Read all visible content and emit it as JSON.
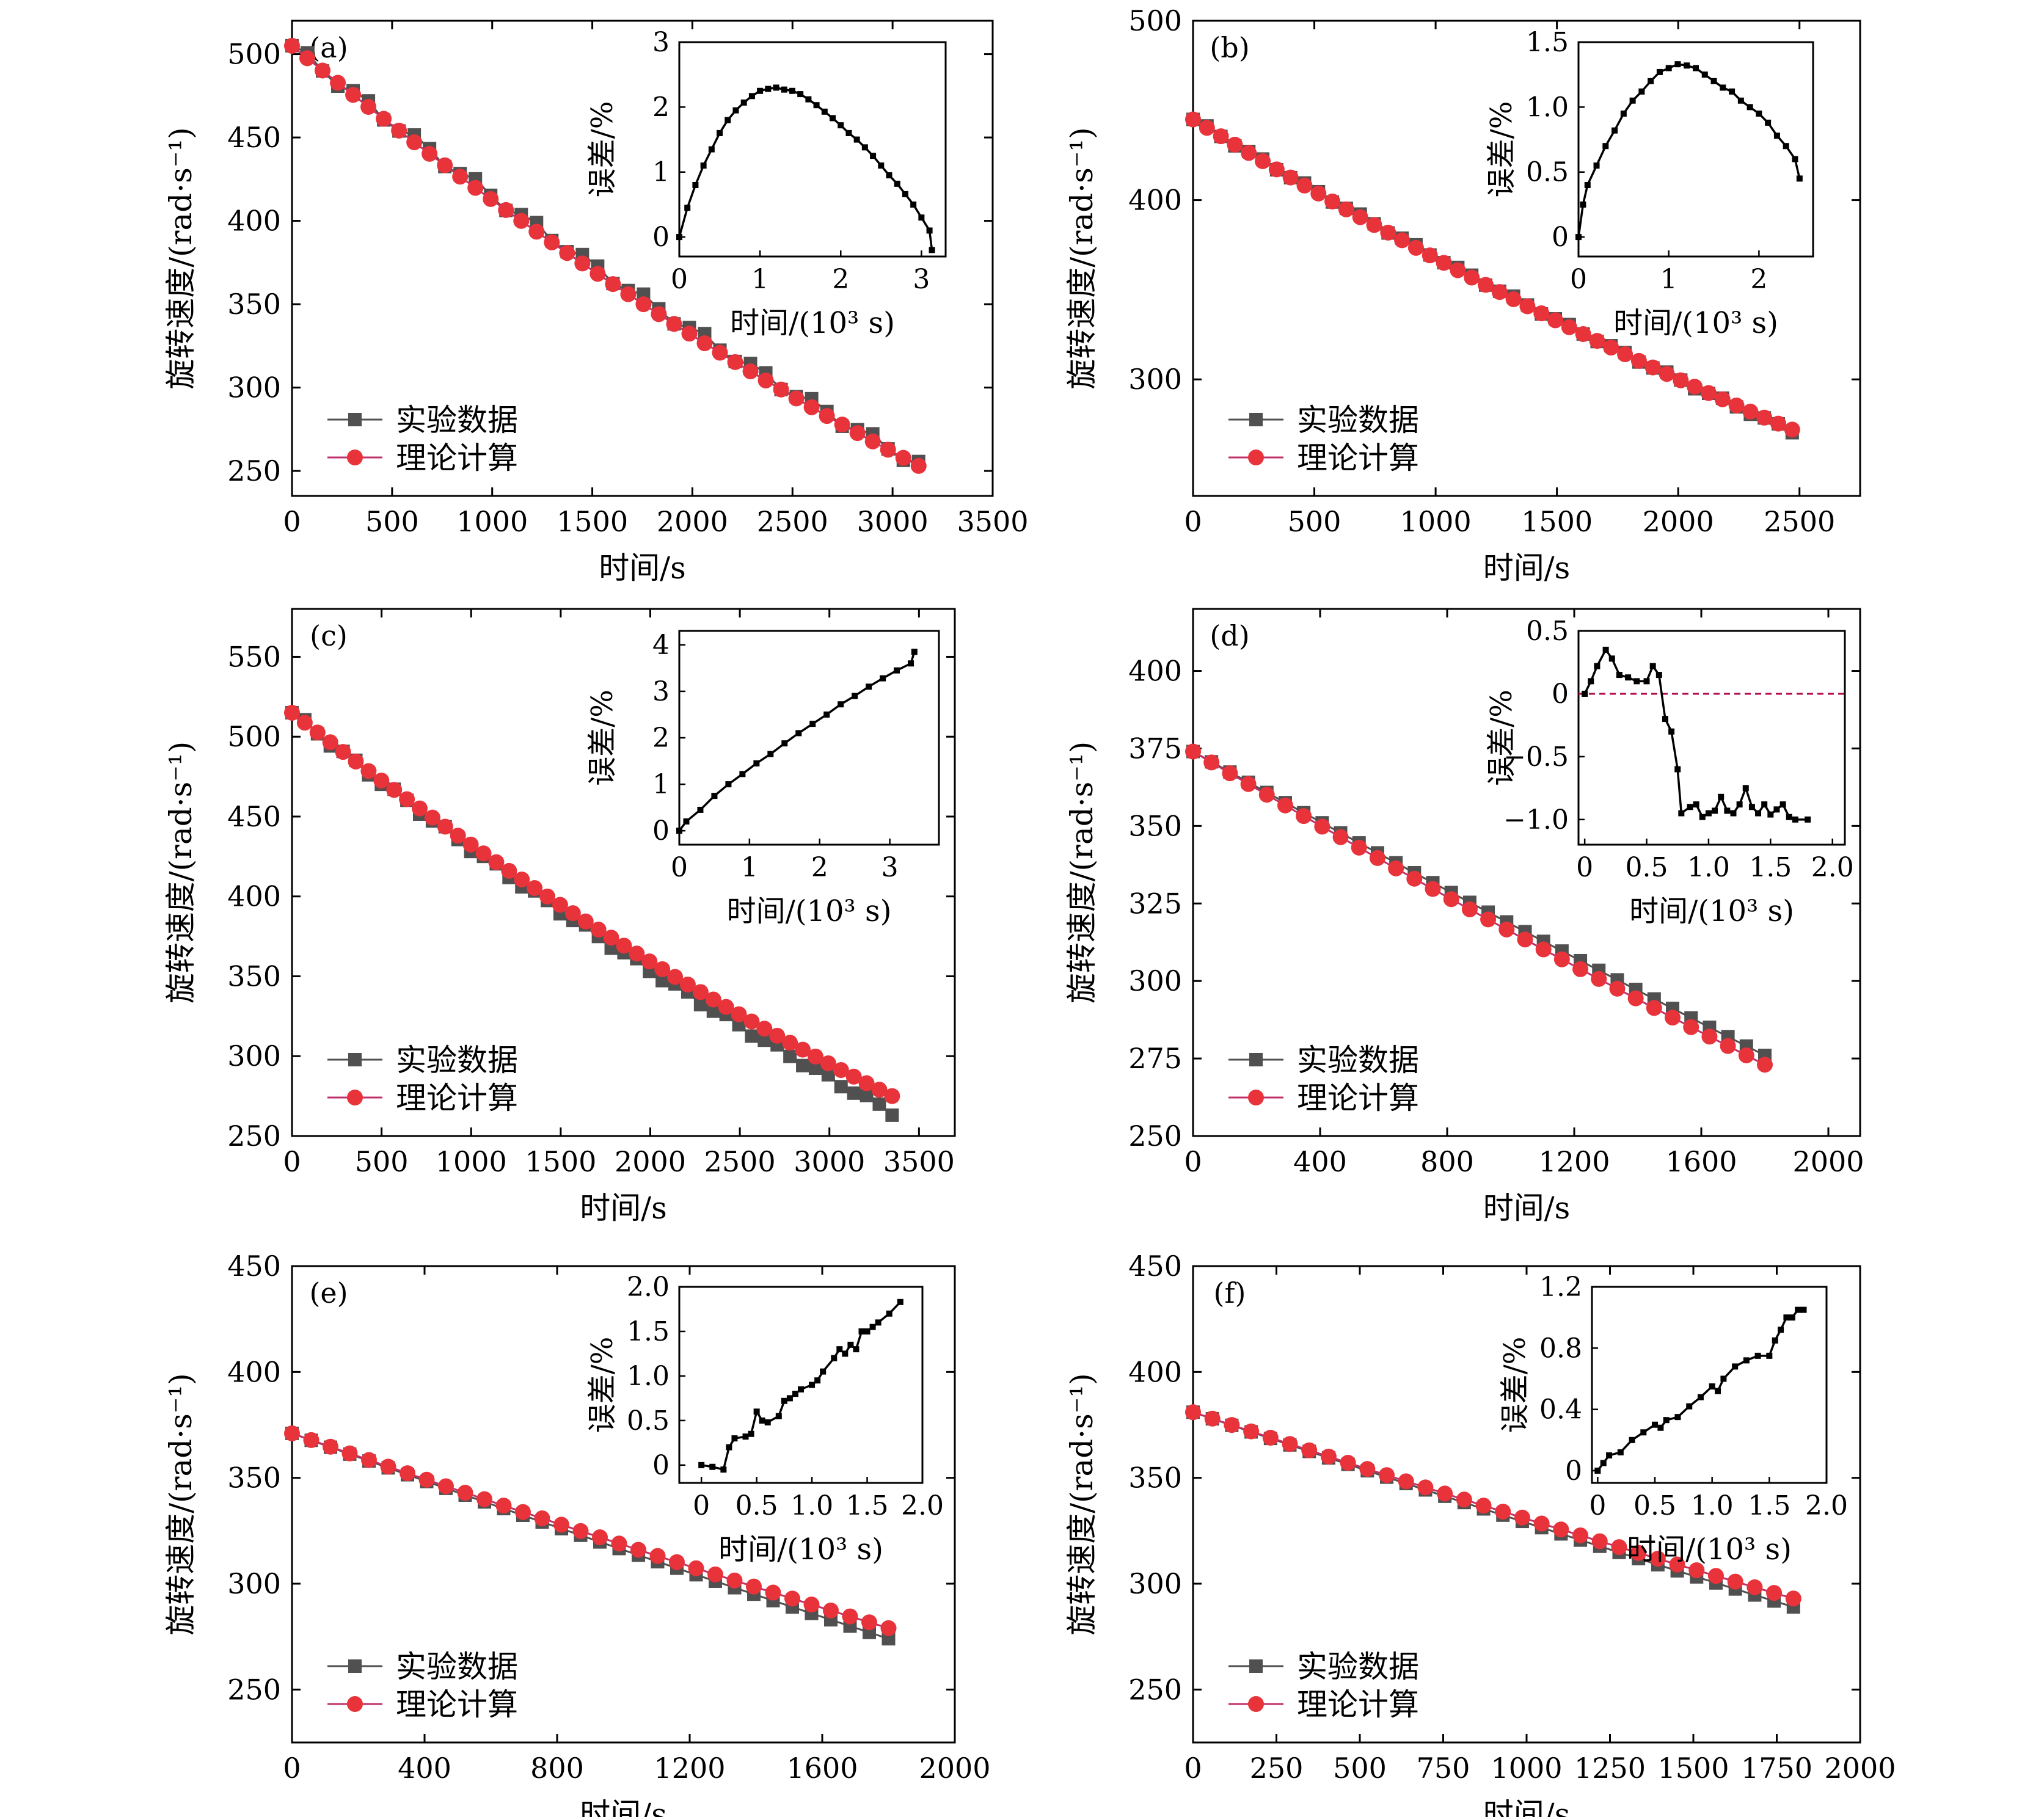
{
  "colors": {
    "experiment": "#505050",
    "theory": "#e8333a",
    "theory_line": "#c0306a",
    "inset_line": "#000000",
    "zero_line": "#b01050"
  },
  "legend": {
    "experiment": "实验数据",
    "theory": "理论计算"
  },
  "chart_data": [
    {
      "panel": "(a)",
      "type": "line",
      "xlabel": "时间/s",
      "ylabel": "旋转速度/(rad·s⁻¹)",
      "xlim": [
        0,
        3500
      ],
      "ylim": [
        235,
        520
      ],
      "xticks": [
        "0",
        "500",
        "1000",
        "1500",
        "2000",
        "2500",
        "3000",
        "3500"
      ],
      "yticks": [
        "250",
        "300",
        "350",
        "400",
        "450",
        "500"
      ],
      "series": [
        {
          "name": "实验数据",
          "x_end": 3130,
          "v_start": 505,
          "v_end": 254,
          "curve": 0.18,
          "count": 42,
          "ripple": 3
        },
        {
          "name": "理论计算",
          "x_end": 3130,
          "v_start": 505,
          "v_end": 253,
          "curve": 0.22,
          "count": 42,
          "ripple": 0
        }
      ],
      "inset": {
        "xlabel": "时间/(10³ s)",
        "ylabel": "误差/%",
        "xlim": [
          0,
          3.3
        ],
        "ylim": [
          -0.3,
          3.0
        ],
        "xticks": [
          "0",
          "1",
          "2",
          "3"
        ],
        "yticks": [
          "0",
          "1",
          "2",
          "3"
        ],
        "points": [
          [
            0,
            0
          ],
          [
            0.1,
            0.45
          ],
          [
            0.2,
            0.8
          ],
          [
            0.3,
            1.1
          ],
          [
            0.4,
            1.35
          ],
          [
            0.5,
            1.6
          ],
          [
            0.6,
            1.8
          ],
          [
            0.7,
            1.95
          ],
          [
            0.8,
            2.07
          ],
          [
            0.9,
            2.17
          ],
          [
            1.0,
            2.25
          ],
          [
            1.1,
            2.28
          ],
          [
            1.2,
            2.3
          ],
          [
            1.3,
            2.27
          ],
          [
            1.4,
            2.25
          ],
          [
            1.5,
            2.2
          ],
          [
            1.6,
            2.12
          ],
          [
            1.7,
            2.03
          ],
          [
            1.8,
            1.93
          ],
          [
            1.9,
            1.83
          ],
          [
            2.0,
            1.72
          ],
          [
            2.1,
            1.6
          ],
          [
            2.2,
            1.5
          ],
          [
            2.3,
            1.38
          ],
          [
            2.4,
            1.25
          ],
          [
            2.5,
            1.1
          ],
          [
            2.6,
            0.95
          ],
          [
            2.7,
            0.82
          ],
          [
            2.8,
            0.66
          ],
          [
            2.9,
            0.5
          ],
          [
            3.0,
            0.3
          ],
          [
            3.1,
            0.1
          ],
          [
            3.13,
            -0.2
          ]
        ]
      }
    },
    {
      "panel": "(b)",
      "type": "line",
      "xlabel": "时间/s",
      "ylabel": "旋转速度/(rad·s⁻¹)",
      "xlim": [
        0,
        2750
      ],
      "ylim": [
        235,
        500
      ],
      "xticks": [
        "0",
        "500",
        "1000",
        "1500",
        "2000",
        "2500"
      ],
      "yticks": [
        "300",
        "400",
        "500"
      ],
      "series": [
        {
          "name": "实验数据",
          "x_end": 2470,
          "v_start": 445,
          "v_end": 271,
          "curve": 0.15,
          "count": 44,
          "ripple": 1
        },
        {
          "name": "理论计算",
          "x_end": 2470,
          "v_start": 445,
          "v_end": 272,
          "curve": 0.18,
          "count": 44,
          "ripple": 0
        }
      ],
      "inset": {
        "xlabel": "时间/(10³ s)",
        "ylabel": "误差/%",
        "xlim": [
          0,
          2.6
        ],
        "ylim": [
          -0.15,
          1.5
        ],
        "xticks": [
          "0",
          "1",
          "2"
        ],
        "yticks": [
          "0",
          "0.5",
          "1.0",
          "1.5"
        ],
        "points": [
          [
            0,
            0
          ],
          [
            0.05,
            0.25
          ],
          [
            0.1,
            0.4
          ],
          [
            0.2,
            0.55
          ],
          [
            0.3,
            0.7
          ],
          [
            0.4,
            0.82
          ],
          [
            0.5,
            0.95
          ],
          [
            0.6,
            1.05
          ],
          [
            0.7,
            1.12
          ],
          [
            0.8,
            1.2
          ],
          [
            0.9,
            1.27
          ],
          [
            1.0,
            1.3
          ],
          [
            1.1,
            1.33
          ],
          [
            1.2,
            1.32
          ],
          [
            1.3,
            1.3
          ],
          [
            1.4,
            1.25
          ],
          [
            1.5,
            1.2
          ],
          [
            1.6,
            1.15
          ],
          [
            1.7,
            1.12
          ],
          [
            1.8,
            1.05
          ],
          [
            1.9,
            1.0
          ],
          [
            2.0,
            0.95
          ],
          [
            2.1,
            0.88
          ],
          [
            2.2,
            0.78
          ],
          [
            2.3,
            0.7
          ],
          [
            2.4,
            0.6
          ],
          [
            2.45,
            0.45
          ]
        ]
      }
    },
    {
      "panel": "(c)",
      "type": "line",
      "xlabel": "时间/s",
      "ylabel": "旋转速度/(rad·s⁻¹)",
      "xlim": [
        0,
        3700
      ],
      "ylim": [
        250,
        580
      ],
      "xticks": [
        "0",
        "500",
        "1000",
        "1500",
        "2000",
        "2500",
        "3000",
        "3500"
      ],
      "yticks": [
        "250",
        "300",
        "350",
        "400",
        "450",
        "500",
        "550"
      ],
      "series": [
        {
          "name": "实验数据",
          "x_end": 3350,
          "v_start": 515,
          "v_end": 265,
          "curve": 0.2,
          "count": 48,
          "ripple": 2
        },
        {
          "name": "理论计算",
          "x_end": 3350,
          "v_start": 515,
          "v_end": 275,
          "curve": 0.22,
          "count": 48,
          "ripple": 0
        }
      ],
      "inset": {
        "xlabel": "时间/(10³ s)",
        "ylabel": "误差/%",
        "xlim": [
          0,
          3.7
        ],
        "ylim": [
          -0.3,
          4.3
        ],
        "xticks": [
          "0",
          "1",
          "2",
          "3"
        ],
        "yticks": [
          "0",
          "1",
          "2",
          "3",
          "4"
        ],
        "points": [
          [
            0,
            0
          ],
          [
            0.1,
            0.2
          ],
          [
            0.3,
            0.45
          ],
          [
            0.5,
            0.75
          ],
          [
            0.7,
            1.0
          ],
          [
            0.9,
            1.22
          ],
          [
            1.1,
            1.45
          ],
          [
            1.3,
            1.65
          ],
          [
            1.5,
            1.88
          ],
          [
            1.7,
            2.1
          ],
          [
            1.9,
            2.3
          ],
          [
            2.1,
            2.5
          ],
          [
            2.3,
            2.72
          ],
          [
            2.5,
            2.9
          ],
          [
            2.7,
            3.1
          ],
          [
            2.9,
            3.28
          ],
          [
            3.1,
            3.45
          ],
          [
            3.3,
            3.6
          ],
          [
            3.35,
            3.85
          ]
        ]
      }
    },
    {
      "panel": "(d)",
      "type": "line",
      "xlabel": "时间/s",
      "ylabel": "旋转速度/(rad·s⁻¹)",
      "xlim": [
        0,
        2100
      ],
      "ylim": [
        250,
        420
      ],
      "xticks": [
        "0",
        "400",
        "800",
        "1200",
        "1600",
        "2000"
      ],
      "yticks": [
        "250",
        "275",
        "300",
        "325",
        "350",
        "375",
        "400"
      ],
      "series": [
        {
          "name": "实验数据",
          "x_end": 1800,
          "v_start": 374,
          "v_end": 276,
          "curve": 0.05,
          "count": 32,
          "ripple": 0
        },
        {
          "name": "理论计算",
          "x_end": 1800,
          "v_start": 374,
          "v_end": 273,
          "curve": 0.08,
          "count": 32,
          "ripple": 0
        }
      ],
      "inset": {
        "xlabel": "时间/(10³ s)",
        "ylabel": "误差/%",
        "xlim": [
          -0.05,
          2.1
        ],
        "ylim": [
          -1.2,
          0.5
        ],
        "xticks": [
          "0",
          "0.5",
          "1.0",
          "1.5",
          "2.0"
        ],
        "yticks": [
          "-1.0",
          "-0.5",
          "0",
          "0.5"
        ],
        "zero_line": true,
        "points": [
          [
            0,
            0
          ],
          [
            0.05,
            0.1
          ],
          [
            0.1,
            0.22
          ],
          [
            0.17,
            0.35
          ],
          [
            0.22,
            0.28
          ],
          [
            0.28,
            0.15
          ],
          [
            0.35,
            0.13
          ],
          [
            0.42,
            0.1
          ],
          [
            0.5,
            0.1
          ],
          [
            0.55,
            0.22
          ],
          [
            0.6,
            0.15
          ],
          [
            0.65,
            -0.2
          ],
          [
            0.7,
            -0.3
          ],
          [
            0.75,
            -0.6
          ],
          [
            0.78,
            -0.95
          ],
          [
            0.85,
            -0.9
          ],
          [
            0.9,
            -0.88
          ],
          [
            0.95,
            -0.98
          ],
          [
            1.0,
            -0.95
          ],
          [
            1.05,
            -0.93
          ],
          [
            1.1,
            -0.82
          ],
          [
            1.15,
            -0.93
          ],
          [
            1.2,
            -0.95
          ],
          [
            1.25,
            -0.88
          ],
          [
            1.3,
            -0.75
          ],
          [
            1.35,
            -0.9
          ],
          [
            1.4,
            -0.95
          ],
          [
            1.45,
            -0.88
          ],
          [
            1.5,
            -0.96
          ],
          [
            1.55,
            -0.92
          ],
          [
            1.6,
            -0.88
          ],
          [
            1.65,
            -0.98
          ],
          [
            1.7,
            -1.0
          ],
          [
            1.8,
            -1.0
          ]
        ]
      }
    },
    {
      "panel": "(e)",
      "type": "line",
      "xlabel": "时间/s",
      "ylabel": "旋转速度/(rad·s⁻¹)",
      "xlim": [
        0,
        2000
      ],
      "ylim": [
        225,
        450
      ],
      "xticks": [
        "0",
        "400",
        "800",
        "1200",
        "1600",
        "2000"
      ],
      "yticks": [
        "250",
        "300",
        "350",
        "400",
        "450"
      ],
      "series": [
        {
          "name": "实验数据",
          "x_end": 1800,
          "v_start": 371,
          "v_end": 274,
          "curve": 0.05,
          "count": 32,
          "ripple": 0
        },
        {
          "name": "理论计算",
          "x_end": 1800,
          "v_start": 371,
          "v_end": 279,
          "curve": 0.07,
          "count": 32,
          "ripple": 0
        }
      ],
      "inset": {
        "xlabel": "时间/(10³ s)",
        "ylabel": "误差/%",
        "xlim": [
          -0.2,
          2.0
        ],
        "ylim": [
          -0.2,
          2.0
        ],
        "xticks": [
          "0",
          "0.5",
          "1.0",
          "1.5",
          "2.0"
        ],
        "yticks": [
          "0",
          "0.5",
          "1.0",
          "1.5",
          "2.0"
        ],
        "points": [
          [
            0,
            0
          ],
          [
            0.1,
            -0.02
          ],
          [
            0.2,
            -0.05
          ],
          [
            0.25,
            0.2
          ],
          [
            0.3,
            0.3
          ],
          [
            0.4,
            0.32
          ],
          [
            0.45,
            0.35
          ],
          [
            0.5,
            0.6
          ],
          [
            0.55,
            0.5
          ],
          [
            0.6,
            0.48
          ],
          [
            0.7,
            0.55
          ],
          [
            0.75,
            0.72
          ],
          [
            0.8,
            0.75
          ],
          [
            0.85,
            0.8
          ],
          [
            0.9,
            0.85
          ],
          [
            1.0,
            0.9
          ],
          [
            1.05,
            0.95
          ],
          [
            1.1,
            1.05
          ],
          [
            1.2,
            1.2
          ],
          [
            1.25,
            1.3
          ],
          [
            1.3,
            1.25
          ],
          [
            1.35,
            1.35
          ],
          [
            1.4,
            1.3
          ],
          [
            1.45,
            1.5
          ],
          [
            1.5,
            1.5
          ],
          [
            1.55,
            1.55
          ],
          [
            1.6,
            1.6
          ],
          [
            1.7,
            1.7
          ],
          [
            1.8,
            1.83
          ]
        ]
      }
    },
    {
      "panel": "(f)",
      "type": "line",
      "xlabel": "时间/s",
      "ylabel": "旋转速度/(rad·s⁻¹)",
      "xlim": [
        0,
        2000
      ],
      "ylim": [
        225,
        450
      ],
      "xticks": [
        "0",
        "250",
        "500",
        "750",
        "1000",
        "1250",
        "1500",
        "1750",
        "2000"
      ],
      "yticks": [
        "250",
        "300",
        "350",
        "400",
        "450"
      ],
      "series": [
        {
          "name": "实验数据",
          "x_end": 1800,
          "v_start": 381,
          "v_end": 289,
          "curve": 0.05,
          "count": 32,
          "ripple": 0
        },
        {
          "name": "理论计算",
          "x_end": 1800,
          "v_start": 381,
          "v_end": 293,
          "curve": 0.07,
          "count": 32,
          "ripple": 0
        }
      ],
      "inset": {
        "xlabel": "时间/(10³ s)",
        "ylabel": "误差/%",
        "xlim": [
          -0.05,
          2.0
        ],
        "ylim": [
          -0.08,
          1.2
        ],
        "xticks": [
          "0",
          "0.5",
          "1.0",
          "1.5",
          "2.0"
        ],
        "yticks": [
          "0",
          "0.4",
          "0.8",
          "1.2"
        ],
        "points": [
          [
            0,
            0
          ],
          [
            0.05,
            0.05
          ],
          [
            0.1,
            0.1
          ],
          [
            0.2,
            0.12
          ],
          [
            0.3,
            0.2
          ],
          [
            0.4,
            0.25
          ],
          [
            0.5,
            0.3
          ],
          [
            0.55,
            0.28
          ],
          [
            0.6,
            0.33
          ],
          [
            0.7,
            0.35
          ],
          [
            0.8,
            0.42
          ],
          [
            0.9,
            0.48
          ],
          [
            1.0,
            0.55
          ],
          [
            1.05,
            0.52
          ],
          [
            1.1,
            0.6
          ],
          [
            1.2,
            0.68
          ],
          [
            1.3,
            0.72
          ],
          [
            1.4,
            0.75
          ],
          [
            1.5,
            0.75
          ],
          [
            1.55,
            0.85
          ],
          [
            1.6,
            0.92
          ],
          [
            1.65,
            1.0
          ],
          [
            1.7,
            1.0
          ],
          [
            1.75,
            1.05
          ],
          [
            1.8,
            1.05
          ]
        ]
      }
    }
  ]
}
